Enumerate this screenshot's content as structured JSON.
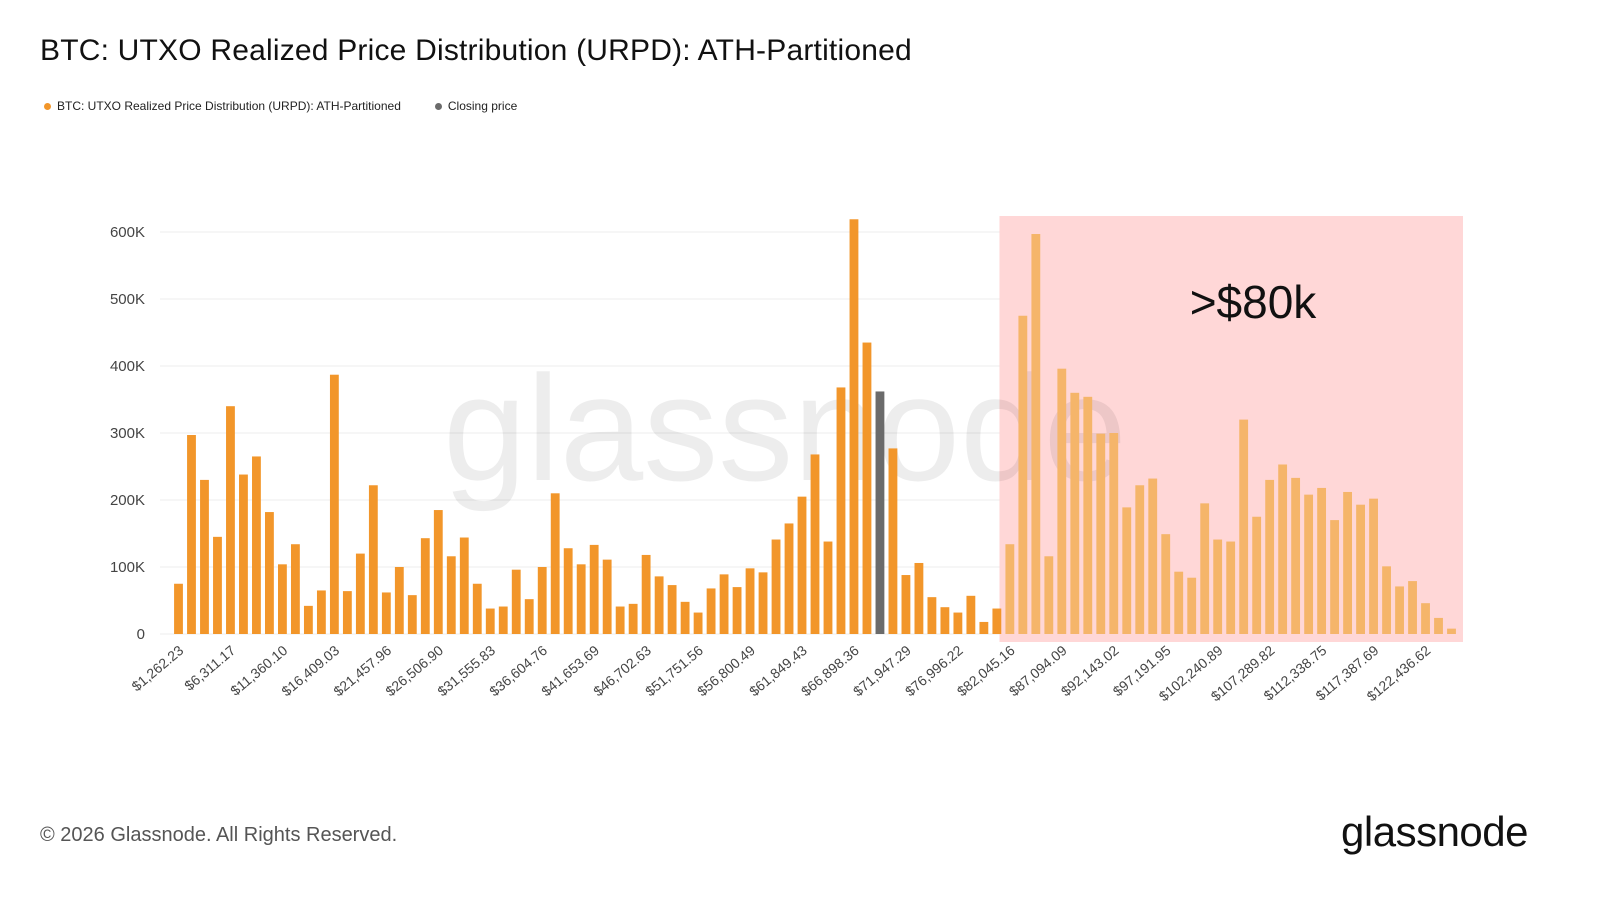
{
  "title": "BTC: UTXO Realized Price Distribution (URPD): ATH-Partitioned",
  "legend": [
    {
      "label": "BTC: UTXO Realized Price Distribution (URPD): ATH-Partitioned",
      "color": "#f2962a"
    },
    {
      "label": "Closing price",
      "color": "#6b6b6b"
    }
  ],
  "watermark": "glassnode",
  "annotation": ">$80k",
  "footer": {
    "copyright": "© 2026 Glassnode. All Rights Reserved.",
    "logo": "glassnode"
  },
  "colors": {
    "bar": "#f2962a",
    "bar_light": "#f5b56a",
    "closing": "#6b6b6b",
    "highlight": "#ffd7d7",
    "grid": "#ececec"
  },
  "chart_data": {
    "type": "bar",
    "yticks": [
      "0",
      "100K",
      "200K",
      "300K",
      "400K",
      "500K",
      "600K"
    ],
    "ylim": [
      0,
      620000
    ],
    "xticks": [
      "$1,262.23",
      "$6,311.17",
      "$11,360.10",
      "$16,409.03",
      "$21,457.96",
      "$26,506.90",
      "$31,555.83",
      "$36,604.76",
      "$41,653.69",
      "$46,702.63",
      "$51,751.56",
      "$56,800.49",
      "$61,849.43",
      "$66,898.36",
      "$71,947.29",
      "$76,996.22",
      "$82,045.16",
      "$87,094.09",
      "$92,143.02",
      "$97,191.95",
      "$102,240.89",
      "$107,289.82",
      "$112,338.75",
      "$117,387.69",
      "$122,436.62"
    ],
    "bucket_start": 1262.23,
    "bucket_width": 1262.23,
    "closing_index": 54,
    "highlight_from_index": 64,
    "values": [
      75000,
      297000,
      230000,
      145000,
      340000,
      238000,
      265000,
      182000,
      104000,
      134000,
      42000,
      65000,
      387000,
      64000,
      120000,
      222000,
      62000,
      100000,
      58000,
      143000,
      185000,
      116000,
      144000,
      75000,
      38000,
      41000,
      96000,
      52000,
      100000,
      210000,
      128000,
      104000,
      133000,
      111000,
      41000,
      45000,
      118000,
      86000,
      73000,
      48000,
      32000,
      68000,
      89000,
      70000,
      98000,
      92000,
      141000,
      165000,
      205000,
      268000,
      138000,
      368000,
      619000,
      435000,
      362000,
      277000,
      88000,
      106000,
      55000,
      40000,
      32000,
      57000,
      18000,
      38000,
      134000,
      475000,
      597000,
      116000,
      396000,
      360000,
      354000,
      299000,
      300000,
      189000,
      222000,
      232000,
      149000,
      93000,
      84000,
      195000,
      141000,
      138000,
      320000,
      175000,
      230000,
      253000,
      233000,
      208000,
      218000,
      170000,
      212000,
      193000,
      202000,
      101000,
      71000,
      79000,
      46000,
      24000,
      8000
    ]
  }
}
